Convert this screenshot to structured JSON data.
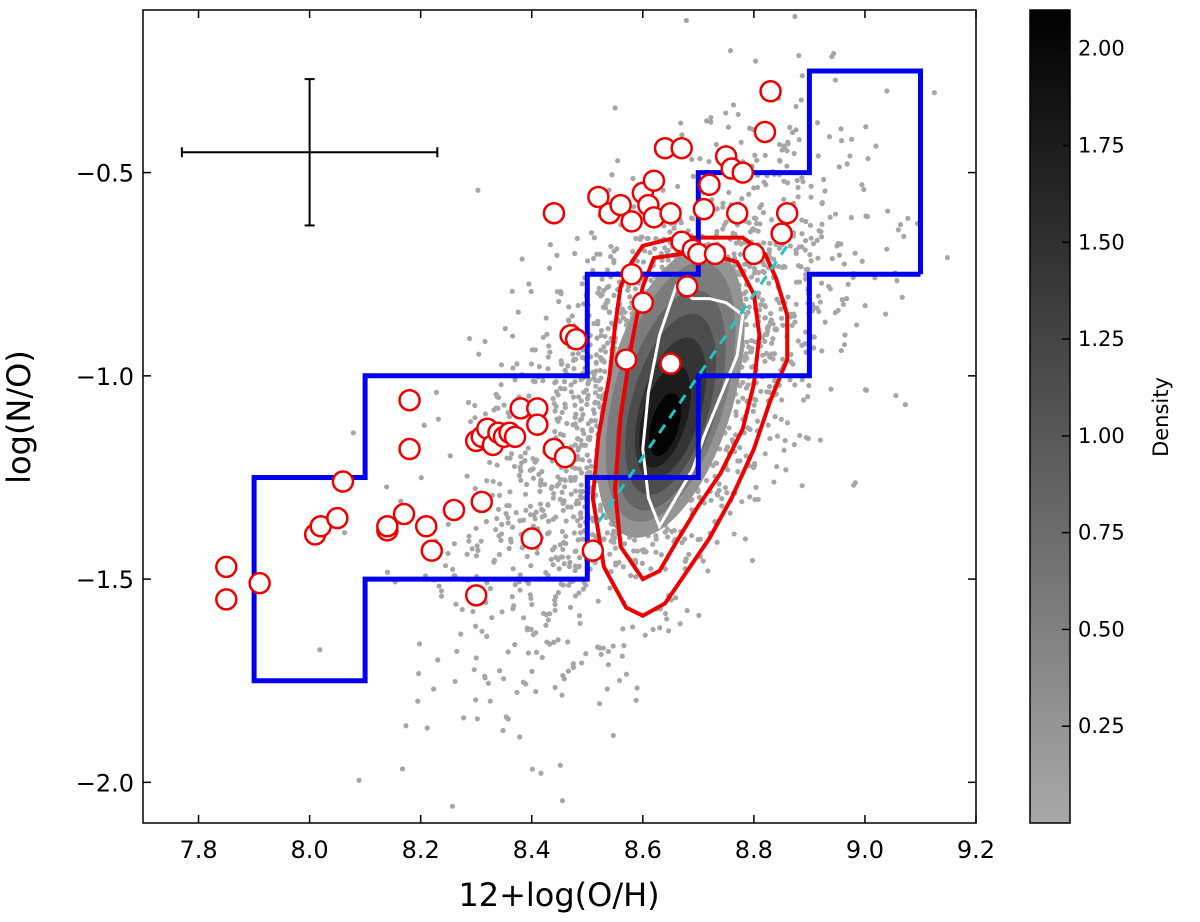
{
  "chart_data": {
    "type": "scatter",
    "title": "",
    "xlabel": "12+log(O/H)",
    "ylabel": "log(N/O)",
    "xlim": [
      7.7,
      9.2
    ],
    "ylim": [
      -2.1,
      -0.1
    ],
    "xticks": [
      7.8,
      8.0,
      8.2,
      8.4,
      8.6,
      8.8,
      9.0,
      9.2
    ],
    "yticks": [
      -2.0,
      -1.5,
      -1.0,
      -0.5
    ],
    "xtick_labels": [
      "7.8",
      "8.0",
      "8.2",
      "8.4",
      "8.6",
      "8.8",
      "9.0",
      "9.2"
    ],
    "ytick_labels": [
      "−2.0",
      "−1.5",
      "−1.0",
      "−0.5"
    ],
    "grid": false,
    "colorbar": {
      "label": "Density",
      "range": [
        0.0,
        2.1
      ],
      "ticks": [
        0.25,
        0.5,
        0.75,
        1.0,
        1.25,
        1.5,
        1.75,
        2.0
      ],
      "tick_labels": [
        "0.25",
        "0.50",
        "0.75",
        "1.00",
        "1.25",
        "1.50",
        "1.75",
        "2.00"
      ],
      "colormap": "gray_r"
    },
    "colors": {
      "background_points": "#a6a6a6",
      "highlight_marker_edge": "#ee0000",
      "highlight_marker_fill": "#ffffff",
      "contours": "#ee0000",
      "inner_contour": "#ffffff",
      "boundary_lines": "#0000ee",
      "fit_line": "#22c4c4",
      "error_bar": "#000000"
    },
    "background_sample": {
      "center": [
        8.62,
        -1.05
      ],
      "description_free": true
    },
    "error_bar": {
      "x": 8.0,
      "y": -0.45,
      "xerr": 0.23,
      "yerr": 0.18
    },
    "fit_line": {
      "x": [
        8.52,
        8.86
      ],
      "y": [
        -1.36,
        -0.68
      ]
    },
    "boundary_upper": {
      "x": [
        7.9,
        7.9,
        8.1,
        8.1,
        8.5,
        8.5,
        8.7,
        8.7,
        8.9,
        8.9,
        9.1,
        9.1
      ],
      "y": [
        -1.5,
        -1.25,
        -1.25,
        -1.0,
        -1.0,
        -0.75,
        -0.75,
        -0.5,
        -0.5,
        -0.25,
        -0.25,
        -0.75
      ]
    },
    "boundary_lower": {
      "x": [
        9.1,
        8.9,
        8.9,
        8.7,
        8.7,
        8.5,
        8.5,
        8.1,
        8.1,
        7.9,
        7.9
      ],
      "y": [
        -0.75,
        -0.75,
        -1.0,
        -1.0,
        -1.25,
        -1.25,
        -1.5,
        -1.5,
        -1.75,
        -1.75,
        -1.5
      ]
    },
    "contour_outer": {
      "x": [
        8.6,
        8.66,
        8.72,
        8.78,
        8.82,
        8.84,
        8.86,
        8.86,
        8.83,
        8.8,
        8.76,
        8.72,
        8.68,
        8.64,
        8.6,
        8.57,
        8.53,
        8.51,
        8.52,
        8.54,
        8.55,
        8.56,
        8.58,
        8.6
      ],
      "y": [
        -0.68,
        -0.66,
        -0.66,
        -0.66,
        -0.7,
        -0.76,
        -0.85,
        -0.96,
        -1.06,
        -1.18,
        -1.3,
        -1.4,
        -1.48,
        -1.56,
        -1.59,
        -1.57,
        -1.47,
        -1.3,
        -1.15,
        -1.0,
        -0.88,
        -0.78,
        -0.72,
        -0.68
      ]
    },
    "contour_middle": {
      "x": [
        8.62,
        8.67,
        8.72,
        8.77,
        8.8,
        8.81,
        8.8,
        8.78,
        8.74,
        8.7,
        8.66,
        8.63,
        8.6,
        8.56,
        8.55,
        8.56,
        8.58,
        8.6,
        8.62
      ],
      "y": [
        -0.71,
        -0.7,
        -0.7,
        -0.72,
        -0.8,
        -0.9,
        -1.02,
        -1.13,
        -1.24,
        -1.32,
        -1.41,
        -1.48,
        -1.5,
        -1.42,
        -1.28,
        -1.1,
        -0.92,
        -0.78,
        -0.71
      ]
    },
    "contour_inner": {
      "x": [
        8.66,
        8.69,
        8.72,
        8.75,
        8.78,
        8.77,
        8.74,
        8.71,
        8.69,
        8.66,
        8.63,
        8.61,
        8.6,
        8.61,
        8.63,
        8.66
      ],
      "y": [
        -0.78,
        -0.81,
        -0.81,
        -0.82,
        -0.85,
        -0.95,
        -1.05,
        -1.15,
        -1.23,
        -1.3,
        -1.37,
        -1.3,
        -1.18,
        -1.04,
        -0.9,
        -0.78
      ]
    },
    "density_blobs": [
      {
        "x": 8.65,
        "y": -1.04,
        "rx": 0.115,
        "ry": 0.37,
        "level": 0.25
      },
      {
        "x": 8.65,
        "y": -1.04,
        "rx": 0.1,
        "ry": 0.33,
        "level": 0.55
      },
      {
        "x": 8.65,
        "y": -1.06,
        "rx": 0.085,
        "ry": 0.28,
        "level": 0.85
      },
      {
        "x": 8.65,
        "y": -1.07,
        "rx": 0.07,
        "ry": 0.23,
        "level": 1.15
      },
      {
        "x": 8.65,
        "y": -1.08,
        "rx": 0.055,
        "ry": 0.18,
        "level": 1.45
      },
      {
        "x": 8.64,
        "y": -1.1,
        "rx": 0.04,
        "ry": 0.13,
        "level": 1.75
      },
      {
        "x": 8.64,
        "y": -1.12,
        "rx": 0.025,
        "ry": 0.08,
        "level": 2.05
      }
    ],
    "highlight_points": {
      "x": [
        7.85,
        7.85,
        7.91,
        8.01,
        8.02,
        8.05,
        8.06,
        8.14,
        8.14,
        8.17,
        8.18,
        8.18,
        8.21,
        8.22,
        8.26,
        8.3,
        8.3,
        8.31,
        8.31,
        8.32,
        8.33,
        8.34,
        8.35,
        8.36,
        8.37,
        8.38,
        8.4,
        8.41,
        8.41,
        8.44,
        8.44,
        8.46,
        8.47,
        8.48,
        8.51,
        8.52,
        8.54,
        8.56,
        8.57,
        8.58,
        8.58,
        8.6,
        8.6,
        8.61,
        8.62,
        8.62,
        8.64,
        8.65,
        8.65,
        8.67,
        8.67,
        8.68,
        8.69,
        8.7,
        8.71,
        8.72,
        8.73,
        8.75,
        8.76,
        8.77,
        8.78,
        8.8,
        8.82,
        8.83,
        8.85,
        8.86
      ],
      "y": [
        -1.47,
        -1.55,
        -1.51,
        -1.39,
        -1.37,
        -1.35,
        -1.26,
        -1.38,
        -1.37,
        -1.34,
        -1.06,
        -1.18,
        -1.37,
        -1.43,
        -1.33,
        -1.16,
        -1.54,
        -1.15,
        -1.31,
        -1.13,
        -1.17,
        -1.14,
        -1.15,
        -1.14,
        -1.15,
        -1.08,
        -1.4,
        -1.08,
        -1.12,
        -1.18,
        -0.6,
        -1.2,
        -0.9,
        -0.91,
        -1.43,
        -0.56,
        -0.6,
        -0.58,
        -0.96,
        -0.62,
        -0.75,
        -0.55,
        -0.82,
        -0.58,
        -0.52,
        -0.61,
        -0.44,
        -0.6,
        -0.97,
        -0.44,
        -0.67,
        -0.78,
        -0.69,
        -0.7,
        -0.59,
        -0.53,
        -0.7,
        -0.46,
        -0.49,
        -0.6,
        -0.5,
        -0.7,
        -0.4,
        -0.3,
        -0.65,
        -0.6
      ]
    }
  }
}
